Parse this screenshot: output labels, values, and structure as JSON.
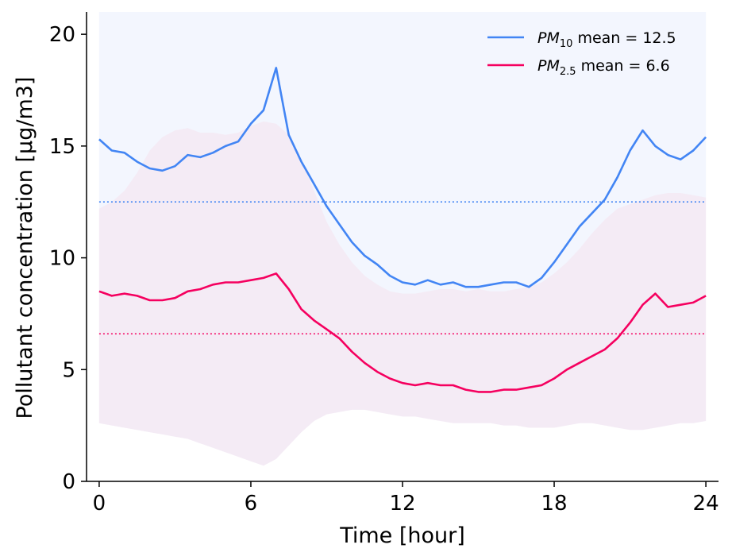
{
  "chart_data": {
    "type": "line",
    "title": "",
    "xlabel": "Time [hour]",
    "ylabel": "Pollutant concentration [μg/m3]",
    "xlim": [
      -0.5,
      24.5
    ],
    "ylim": [
      0,
      21
    ],
    "x_ticks": [
      0,
      6,
      12,
      18,
      24
    ],
    "y_ticks": [
      0,
      5,
      10,
      15,
      20
    ],
    "grid": false,
    "legend_position": "top-right",
    "x": [
      0,
      0.5,
      1,
      1.5,
      2,
      2.5,
      3,
      3.5,
      4,
      4.5,
      5,
      5.5,
      6,
      6.5,
      7,
      7.5,
      8,
      8.5,
      9,
      9.5,
      10,
      10.5,
      11,
      11.5,
      12,
      12.5,
      13,
      13.5,
      14,
      14.5,
      15,
      15.5,
      16,
      16.5,
      17,
      17.5,
      18,
      18.5,
      19,
      19.5,
      20,
      20.5,
      21,
      21.5,
      22,
      22.5,
      23,
      23.5,
      24
    ],
    "series": [
      {
        "name": "PM10",
        "legend_main": "PM",
        "legend_sub": "10",
        "legend_tail": " mean = 12.5",
        "color": "#4285f4",
        "mean": 12.5,
        "values": [
          15.3,
          14.8,
          14.7,
          14.3,
          14.0,
          13.9,
          14.1,
          14.6,
          14.5,
          14.7,
          15.0,
          15.2,
          16.0,
          16.6,
          18.5,
          15.5,
          14.3,
          13.3,
          12.3,
          11.5,
          10.7,
          10.1,
          9.7,
          9.2,
          8.9,
          8.8,
          9.0,
          8.8,
          8.9,
          8.7,
          8.7,
          8.8,
          8.9,
          8.9,
          8.7,
          9.1,
          9.8,
          10.6,
          11.4,
          12.0,
          12.6,
          13.6,
          14.8,
          15.7,
          15.0,
          14.6,
          14.4,
          14.8,
          15.4
        ],
        "band_upper": [
          21,
          21,
          21,
          21,
          21,
          21,
          21,
          21,
          21,
          21,
          21,
          21,
          21,
          21,
          21,
          21,
          21,
          21,
          21,
          21,
          21,
          21,
          21,
          21,
          21,
          21,
          21,
          21,
          21,
          21,
          21,
          21,
          21,
          21,
          21,
          21,
          21,
          21,
          21,
          21,
          21,
          21,
          21,
          21,
          21,
          21,
          21,
          21,
          21
        ],
        "band_lower": [
          2.6,
          2.5,
          2.4,
          2.3,
          2.2,
          2.1,
          2.0,
          1.9,
          1.7,
          1.5,
          1.3,
          1.1,
          0.9,
          0.7,
          1.0,
          1.6,
          2.2,
          2.7,
          3.0,
          3.1,
          3.2,
          3.2,
          3.1,
          3.0,
          2.9,
          2.9,
          2.8,
          2.7,
          2.6,
          2.6,
          2.6,
          2.6,
          2.5,
          2.5,
          2.4,
          2.4,
          2.4,
          2.5,
          2.6,
          2.6,
          2.5,
          2.4,
          2.3,
          2.3,
          2.4,
          2.5,
          2.6,
          2.6,
          2.7
        ]
      },
      {
        "name": "PM2.5",
        "legend_main": "PM",
        "legend_sub": "2.5",
        "legend_tail": " mean = 6.6",
        "color": "#f5005f",
        "mean": 6.6,
        "values": [
          8.5,
          8.3,
          8.4,
          8.3,
          8.1,
          8.1,
          8.2,
          8.5,
          8.6,
          8.8,
          8.9,
          8.9,
          9.0,
          9.1,
          9.3,
          8.6,
          7.7,
          7.2,
          6.8,
          6.4,
          5.8,
          5.3,
          4.9,
          4.6,
          4.4,
          4.3,
          4.4,
          4.3,
          4.3,
          4.1,
          4.0,
          4.0,
          4.1,
          4.1,
          4.2,
          4.3,
          4.6,
          5.0,
          5.3,
          5.6,
          5.9,
          6.4,
          7.1,
          7.9,
          8.4,
          7.8,
          7.9,
          8.0,
          8.3
        ],
        "band_upper": [
          12.2,
          12.5,
          13.0,
          13.8,
          14.8,
          15.4,
          15.7,
          15.8,
          15.6,
          15.6,
          15.5,
          15.6,
          15.9,
          16.1,
          16.0,
          15.5,
          14.4,
          13.0,
          11.6,
          10.6,
          9.8,
          9.2,
          8.8,
          8.5,
          8.4,
          8.4,
          8.5,
          8.6,
          8.6,
          8.5,
          8.6,
          8.5,
          8.5,
          8.6,
          8.7,
          8.9,
          9.3,
          9.8,
          10.4,
          11.1,
          11.7,
          12.2,
          12.4,
          12.6,
          12.8,
          12.9,
          12.9,
          12.8,
          12.7
        ],
        "band_lower": [
          2.6,
          2.5,
          2.4,
          2.3,
          2.2,
          2.1,
          2.0,
          1.9,
          1.7,
          1.5,
          1.3,
          1.1,
          0.9,
          0.7,
          1.0,
          1.6,
          2.2,
          2.7,
          3.0,
          3.1,
          3.2,
          3.2,
          3.1,
          3.0,
          2.9,
          2.9,
          2.8,
          2.7,
          2.6,
          2.6,
          2.6,
          2.6,
          2.5,
          2.5,
          2.4,
          2.4,
          2.4,
          2.5,
          2.6,
          2.6,
          2.5,
          2.4,
          2.3,
          2.3,
          2.4,
          2.5,
          2.6,
          2.6,
          2.7
        ]
      }
    ]
  }
}
